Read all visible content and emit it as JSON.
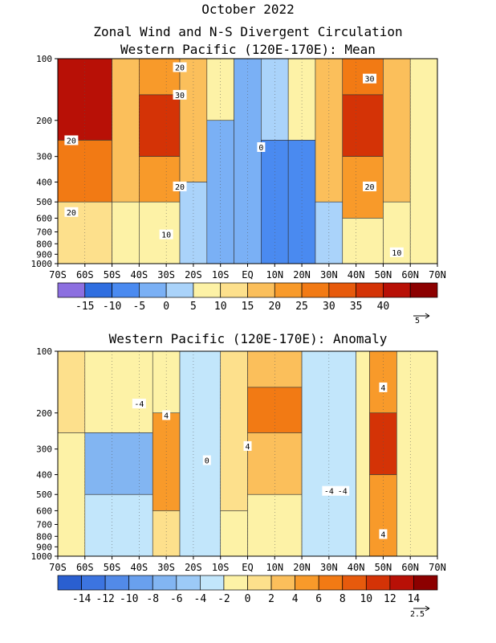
{
  "figure": {
    "title": "October 2022",
    "subtitle": "Zonal Wind and N-S Divergent Circulation"
  },
  "chart_data": [
    {
      "type": "heatmap",
      "title": "Western Pacific (120E-170E): Mean",
      "x_ticks": [
        "70S",
        "60S",
        "50S",
        "40S",
        "30S",
        "20S",
        "10S",
        "EQ",
        "10N",
        "20N",
        "30N",
        "40N",
        "50N",
        "60N",
        "70N"
      ],
      "y_ticks": [
        "100",
        "200",
        "300",
        "400",
        "500",
        "600",
        "700",
        "800",
        "900",
        "1000"
      ],
      "y_scale": "log-pressure",
      "colorbar": {
        "levels": [
          -20,
          -15,
          -10,
          -5,
          0,
          5,
          10,
          15,
          20,
          25,
          30,
          35,
          40,
          45
        ],
        "labels": [
          "-15",
          "-10",
          "-5",
          "0",
          "5",
          "10",
          "15",
          "20",
          "25",
          "30",
          "35",
          "40"
        ],
        "colors": [
          "#8c6fe0",
          "#2f6ee0",
          "#4a8af0",
          "#7ab0f5",
          "#aad3fa",
          "#fdf2a6",
          "#fde08c",
          "#fbbf5b",
          "#f89a2a",
          "#f27a14",
          "#e75a0c",
          "#d43306",
          "#b81006",
          "#8c0000"
        ]
      },
      "contour_labels": [
        "20",
        "30",
        "20",
        "30",
        "20",
        "20",
        "20",
        "10",
        "10",
        "0"
      ],
      "vector_reference": "5",
      "cells": [
        {
          "lat_min": -70,
          "lat_max": -50,
          "p_top": 100,
          "p_bot": 250,
          "value": 40
        },
        {
          "lat_min": -70,
          "lat_max": -50,
          "p_top": 250,
          "p_bot": 500,
          "value": 25
        },
        {
          "lat_min": -70,
          "lat_max": -50,
          "p_top": 500,
          "p_bot": 1000,
          "value": 12
        },
        {
          "lat_min": -50,
          "lat_max": -40,
          "p_top": 100,
          "p_bot": 500,
          "value": 18
        },
        {
          "lat_min": -50,
          "lat_max": -40,
          "p_top": 500,
          "p_bot": 1000,
          "value": 8
        },
        {
          "lat_min": -40,
          "lat_max": -25,
          "p_top": 100,
          "p_bot": 150,
          "value": 22
        },
        {
          "lat_min": -40,
          "lat_max": -25,
          "p_top": 150,
          "p_bot": 300,
          "value": 38
        },
        {
          "lat_min": -40,
          "lat_max": -25,
          "p_top": 300,
          "p_bot": 500,
          "value": 22
        },
        {
          "lat_min": -40,
          "lat_max": -25,
          "p_top": 500,
          "p_bot": 1000,
          "value": 7
        },
        {
          "lat_min": -25,
          "lat_max": -15,
          "p_top": 100,
          "p_bot": 400,
          "value": 15
        },
        {
          "lat_min": -25,
          "lat_max": -15,
          "p_top": 400,
          "p_bot": 1000,
          "value": 3
        },
        {
          "lat_min": -15,
          "lat_max": -5,
          "p_top": 100,
          "p_bot": 200,
          "value": 6
        },
        {
          "lat_min": -15,
          "lat_max": -5,
          "p_top": 200,
          "p_bot": 1000,
          "value": -3
        },
        {
          "lat_min": -5,
          "lat_max": 5,
          "p_top": 100,
          "p_bot": 1000,
          "value": -4
        },
        {
          "lat_min": 5,
          "lat_max": 15,
          "p_top": 100,
          "p_bot": 250,
          "value": 2
        },
        {
          "lat_min": 5,
          "lat_max": 15,
          "p_top": 250,
          "p_bot": 1000,
          "value": -6
        },
        {
          "lat_min": 15,
          "lat_max": 25,
          "p_top": 100,
          "p_bot": 250,
          "value": 5
        },
        {
          "lat_min": 15,
          "lat_max": 25,
          "p_top": 250,
          "p_bot": 1000,
          "value": -7
        },
        {
          "lat_min": 25,
          "lat_max": 35,
          "p_top": 100,
          "p_bot": 500,
          "value": 15
        },
        {
          "lat_min": 25,
          "lat_max": 35,
          "p_top": 500,
          "p_bot": 1000,
          "value": 3
        },
        {
          "lat_min": 35,
          "lat_max": 50,
          "p_top": 100,
          "p_bot": 150,
          "value": 28
        },
        {
          "lat_min": 35,
          "lat_max": 50,
          "p_top": 150,
          "p_bot": 300,
          "value": 38
        },
        {
          "lat_min": 35,
          "lat_max": 50,
          "p_top": 300,
          "p_bot": 600,
          "value": 22
        },
        {
          "lat_min": 35,
          "lat_max": 50,
          "p_top": 600,
          "p_bot": 1000,
          "value": 8
        },
        {
          "lat_min": 50,
          "lat_max": 60,
          "p_top": 100,
          "p_bot": 500,
          "value": 18
        },
        {
          "lat_min": 50,
          "lat_max": 60,
          "p_top": 500,
          "p_bot": 1000,
          "value": 6
        },
        {
          "lat_min": 60,
          "lat_max": 70,
          "p_top": 100,
          "p_bot": 1000,
          "value": 5
        }
      ]
    },
    {
      "type": "heatmap",
      "title": "Western Pacific (120E-170E): Anomaly",
      "x_ticks": [
        "70S",
        "60S",
        "50S",
        "40S",
        "30S",
        "20S",
        "10S",
        "EQ",
        "10N",
        "20N",
        "30N",
        "40N",
        "50N",
        "60N",
        "70N"
      ],
      "y_ticks": [
        "100",
        "200",
        "300",
        "400",
        "500",
        "600",
        "700",
        "800",
        "900",
        "1000"
      ],
      "y_scale": "log-pressure",
      "colorbar": {
        "levels": [
          -16,
          -14,
          -12,
          -10,
          -8,
          -6,
          -4,
          -2,
          0,
          2,
          4,
          6,
          8,
          10,
          12,
          14,
          16
        ],
        "labels": [
          "-14",
          "-12",
          "-10",
          "-8",
          "-6",
          "-4",
          "-2",
          "0",
          "2",
          "4",
          "6",
          "8",
          "10",
          "12",
          "14"
        ],
        "colors": [
          "#2a5fd0",
          "#3c74e0",
          "#528ae8",
          "#69a0ee",
          "#82b5f2",
          "#9ccaf7",
          "#c2e6fb",
          "#fdf2a6",
          "#fde08c",
          "#fbbf5b",
          "#f89a2a",
          "#f27a14",
          "#e75a0c",
          "#d43306",
          "#b81006",
          "#8c0000"
        ]
      },
      "contour_labels": [
        "-4",
        "4",
        "4",
        "-4",
        "0",
        "4",
        "-4",
        "4"
      ],
      "vector_reference": "2.5",
      "cells": [
        {
          "lat_min": -70,
          "lat_max": -60,
          "p_top": 100,
          "p_bot": 250,
          "value": 1
        },
        {
          "lat_min": -70,
          "lat_max": -60,
          "p_top": 250,
          "p_bot": 1000,
          "value": -1
        },
        {
          "lat_min": -60,
          "lat_max": -35,
          "p_top": 100,
          "p_bot": 250,
          "value": -2
        },
        {
          "lat_min": -60,
          "lat_max": -35,
          "p_top": 250,
          "p_bot": 500,
          "value": -7
        },
        {
          "lat_min": -60,
          "lat_max": -35,
          "p_top": 500,
          "p_bot": 1000,
          "value": -4
        },
        {
          "lat_min": -35,
          "lat_max": -25,
          "p_top": 100,
          "p_bot": 200,
          "value": -1
        },
        {
          "lat_min": -35,
          "lat_max": -25,
          "p_top": 200,
          "p_bot": 600,
          "value": 5
        },
        {
          "lat_min": -35,
          "lat_max": -25,
          "p_top": 600,
          "p_bot": 1000,
          "value": 1
        },
        {
          "lat_min": -25,
          "lat_max": -10,
          "p_top": 100,
          "p_bot": 1000,
          "value": -3
        },
        {
          "lat_min": -10,
          "lat_max": 0,
          "p_top": 100,
          "p_bot": 600,
          "value": 1
        },
        {
          "lat_min": -10,
          "lat_max": 0,
          "p_top": 600,
          "p_bot": 1000,
          "value": -1
        },
        {
          "lat_min": 0,
          "lat_max": 20,
          "p_top": 100,
          "p_bot": 150,
          "value": 3
        },
        {
          "lat_min": 0,
          "lat_max": 20,
          "p_top": 150,
          "p_bot": 250,
          "value": 7
        },
        {
          "lat_min": 0,
          "lat_max": 20,
          "p_top": 250,
          "p_bot": 500,
          "value": 3
        },
        {
          "lat_min": 0,
          "lat_max": 20,
          "p_top": 500,
          "p_bot": 1000,
          "value": -1
        },
        {
          "lat_min": 20,
          "lat_max": 40,
          "p_top": 100,
          "p_bot": 1000,
          "value": -4
        },
        {
          "lat_min": 40,
          "lat_max": 45,
          "p_top": 100,
          "p_bot": 1000,
          "value": -1
        },
        {
          "lat_min": 45,
          "lat_max": 55,
          "p_top": 100,
          "p_bot": 200,
          "value": 4
        },
        {
          "lat_min": 45,
          "lat_max": 55,
          "p_top": 200,
          "p_bot": 400,
          "value": 11
        },
        {
          "lat_min": 45,
          "lat_max": 55,
          "p_top": 400,
          "p_bot": 1000,
          "value": 5
        },
        {
          "lat_min": 55,
          "lat_max": 70,
          "p_top": 100,
          "p_bot": 1000,
          "value": -1
        }
      ]
    }
  ]
}
